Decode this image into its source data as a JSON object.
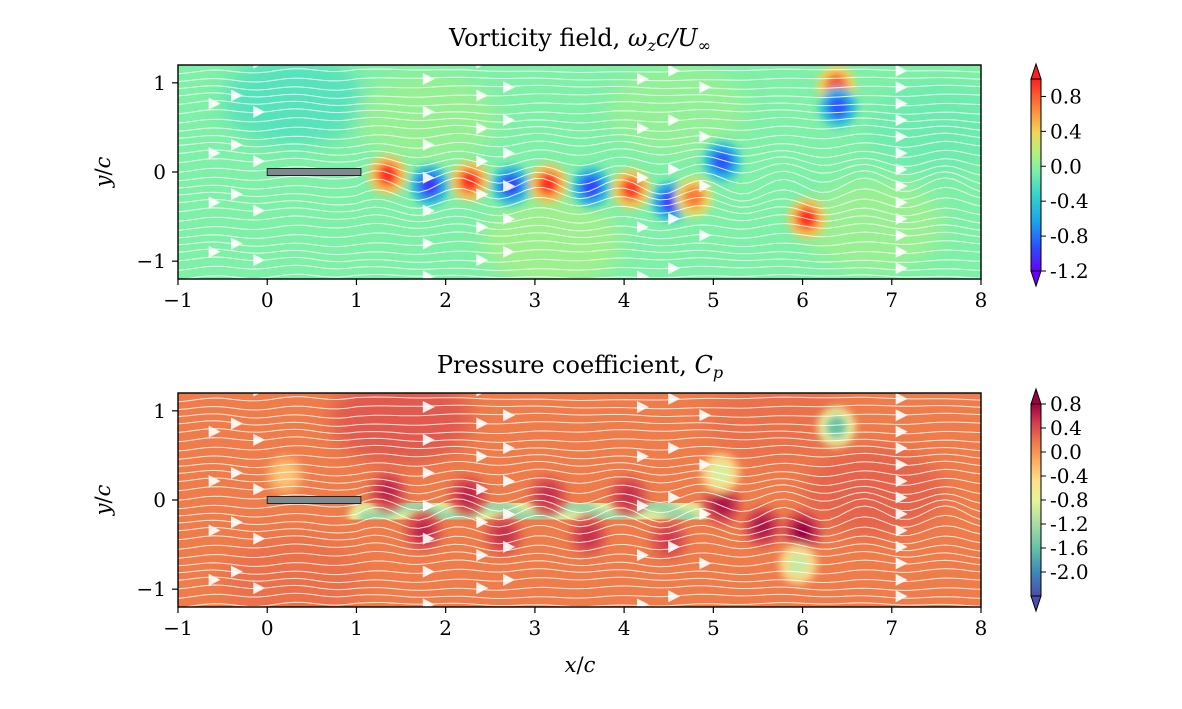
{
  "chart_data": [
    {
      "type": "heatmap",
      "title": "Vorticity field, ωzc/U∞",
      "title_parts": [
        "Vorticity field, ",
        "ω",
        "z",
        "c/U",
        "∞"
      ],
      "xlabel": "",
      "ylabel": "y/c",
      "ylabel_parts": [
        "y",
        "/",
        "c"
      ],
      "xlim": [
        -1,
        8
      ],
      "ylim": [
        -1.2,
        1.2
      ],
      "xticks": [
        -1,
        0,
        1,
        2,
        3,
        4,
        5,
        6,
        7,
        8
      ],
      "xtick_labels": [
        "−1",
        "0",
        "1",
        "2",
        "3",
        "4",
        "5",
        "6",
        "7",
        "8"
      ],
      "yticks": [
        1,
        0,
        -1
      ],
      "ytick_labels": [
        "1",
        "0",
        "−1"
      ],
      "background_level": -0.05,
      "vortices": [
        {
          "x": 1.35,
          "y": -0.03,
          "value": 0.95
        },
        {
          "x": 1.82,
          "y": -0.15,
          "value": -1.0
        },
        {
          "x": 2.27,
          "y": -0.1,
          "value": 0.95
        },
        {
          "x": 2.73,
          "y": -0.15,
          "value": -0.95
        },
        {
          "x": 3.15,
          "y": -0.13,
          "value": 0.95
        },
        {
          "x": 3.63,
          "y": -0.17,
          "value": -0.95
        },
        {
          "x": 4.08,
          "y": -0.19,
          "value": 0.9
        },
        {
          "x": 4.52,
          "y": -0.33,
          "value": -1.0
        },
        {
          "x": 4.78,
          "y": -0.28,
          "value": 0.7
        },
        {
          "x": 5.1,
          "y": 0.12,
          "value": -0.9
        },
        {
          "x": 6.05,
          "y": -0.52,
          "value": 0.95
        },
        {
          "x": 6.38,
          "y": 0.97,
          "value": 0.85
        },
        {
          "x": 6.4,
          "y": 0.73,
          "value": -0.9
        }
      ],
      "airfoil": {
        "x_start": 0,
        "x_end": 1.05,
        "y": 0.0
      },
      "colorbar": {
        "ticks": [
          0.8,
          0.4,
          0.0,
          -0.4,
          -0.8,
          -1.2
        ],
        "tick_labels": [
          "0.8",
          "0.4",
          "0.0",
          "-0.4",
          "-0.8",
          "-1.2"
        ],
        "range": [
          -1.2,
          1.0
        ],
        "colormap": "rainbow"
      }
    },
    {
      "type": "heatmap",
      "title": "Pressure coefficient, Cp",
      "title_parts": [
        "Pressure coefficient, ",
        "C",
        "p"
      ],
      "xlabel": "x/c",
      "xlabel_parts": [
        "x",
        "/",
        "c"
      ],
      "ylabel": "y/c",
      "ylabel_parts": [
        "y",
        "/",
        "c"
      ],
      "xlim": [
        -1,
        8
      ],
      "ylim": [
        -1.2,
        1.2
      ],
      "xticks": [
        -1,
        0,
        1,
        2,
        3,
        4,
        5,
        6,
        7,
        8
      ],
      "xtick_labels": [
        "−1",
        "0",
        "1",
        "2",
        "3",
        "4",
        "5",
        "6",
        "7",
        "8"
      ],
      "yticks": [
        1,
        0,
        -1
      ],
      "ytick_labels": [
        "1",
        "0",
        "−1"
      ],
      "background_level": 0.15,
      "wake_low_pressure_band": {
        "x": [
          1.1,
          1.6,
          2.05,
          2.5,
          2.95,
          3.4,
          3.85,
          4.3,
          4.75
        ],
        "y": [
          -0.2,
          -0.05,
          -0.2,
          -0.05,
          -0.2,
          -0.05,
          -0.2,
          -0.05,
          -0.2
        ],
        "value": -1.3
      },
      "high_pressure_spots": [
        {
          "x": 1.35,
          "y": 0.1,
          "value": 0.6
        },
        {
          "x": 1.75,
          "y": -0.35,
          "value": 0.6
        },
        {
          "x": 2.25,
          "y": 0.05,
          "value": 0.6
        },
        {
          "x": 2.65,
          "y": -0.4,
          "value": 0.55
        },
        {
          "x": 3.15,
          "y": 0.05,
          "value": 0.55
        },
        {
          "x": 3.6,
          "y": -0.4,
          "value": 0.55
        },
        {
          "x": 4.05,
          "y": 0.05,
          "value": 0.55
        },
        {
          "x": 4.5,
          "y": -0.45,
          "value": 0.5
        },
        {
          "x": 5.1,
          "y": -0.05,
          "value": 0.7
        },
        {
          "x": 5.55,
          "y": -0.3,
          "value": 0.7
        },
        {
          "x": 6.0,
          "y": -0.35,
          "value": 0.8
        }
      ],
      "low_pressure_spots": [
        {
          "x": 5.08,
          "y": 0.3,
          "value": -0.9
        },
        {
          "x": 6.38,
          "y": 0.82,
          "value": -1.6
        },
        {
          "x": 5.95,
          "y": -0.72,
          "value": -1.0
        },
        {
          "x": 0.2,
          "y": 0.28,
          "value": -0.3
        }
      ],
      "airfoil": {
        "x_start": 0,
        "x_end": 1.05,
        "y": 0.0
      },
      "colorbar": {
        "ticks": [
          0.8,
          0.4,
          0.0,
          -0.4,
          -0.8,
          -1.2,
          -1.6,
          -2.0
        ],
        "tick_labels": [
          "0.8",
          "0.4",
          "0.0",
          "-0.4",
          "-0.8",
          "-1.2",
          "-1.6",
          "-2.0"
        ],
        "range": [
          -2.4,
          0.8
        ],
        "colormap": "Spectral"
      }
    }
  ]
}
